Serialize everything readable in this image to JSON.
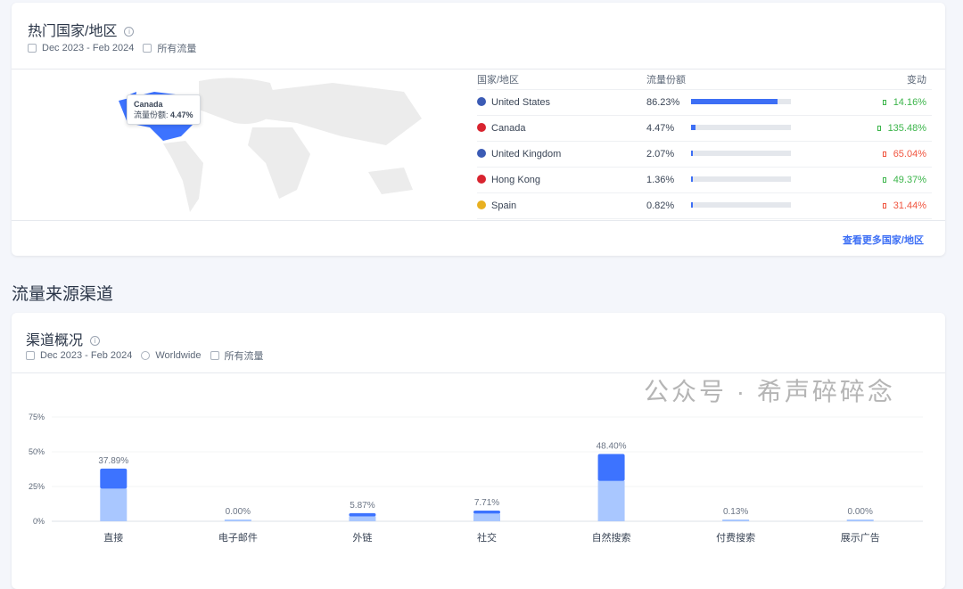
{
  "top_regions": {
    "title": "热门国家/地区",
    "date_range": "Dec 2023 - Feb 2024",
    "traffic_type": "所有流量",
    "columns": [
      "国家/地区",
      "流量份额",
      "变动"
    ],
    "rows": [
      {
        "country": "United States",
        "share": "86.23%",
        "share_value": 86.23,
        "change": "14.16%",
        "direction": "up",
        "flag_color": "#3b5bb5"
      },
      {
        "country": "Canada",
        "share": "4.47%",
        "share_value": 4.47,
        "change": "135.48%",
        "direction": "up",
        "flag_color": "#d8242f"
      },
      {
        "country": "United Kingdom",
        "share": "2.07%",
        "share_value": 2.07,
        "change": "65.04%",
        "direction": "down",
        "flag_color": "#3b5bb5"
      },
      {
        "country": "Hong Kong",
        "share": "1.36%",
        "share_value": 1.36,
        "change": "49.37%",
        "direction": "up",
        "flag_color": "#d8242f"
      },
      {
        "country": "Spain",
        "share": "0.82%",
        "share_value": 0.82,
        "change": "31.44%",
        "direction": "down",
        "flag_color": "#e8b020"
      }
    ],
    "tooltip": {
      "country": "Canada",
      "label": "流量份额:",
      "value": "4.47%"
    },
    "more_link": "查看更多国家/地区",
    "colors": {
      "accent": "#3d6ff5",
      "up": "#3bb54a",
      "down": "#f0553f"
    }
  },
  "section_title": "流量来源渠道",
  "channels": {
    "title": "渠道概况",
    "date_range": "Dec 2023 - Feb 2024",
    "region": "Worldwide",
    "traffic_type": "所有流量"
  },
  "chart_data": {
    "type": "bar",
    "stacked": true,
    "categories": [
      "直接",
      "电子邮件",
      "外链",
      "社交",
      "自然搜索",
      "付费搜索",
      "展示广告"
    ],
    "totals": [
      37.89,
      0.0,
      5.87,
      7.71,
      48.4,
      0.13,
      0.0
    ],
    "total_labels": [
      "37.89%",
      "0.00%",
      "5.87%",
      "7.71%",
      "48.40%",
      "0.13%",
      "0.00%"
    ],
    "series": [
      {
        "values": [
          23.5,
          0,
          3.5,
          5.5,
          29,
          0.13,
          0
        ],
        "color": "#a9c7ff"
      },
      {
        "values": [
          14.39,
          0,
          2.37,
          2.21,
          19.4,
          0,
          0
        ],
        "color": "#3d73ff"
      }
    ],
    "yticks": [
      "0%",
      "25%",
      "50%",
      "75%"
    ],
    "ylim": [
      0,
      75
    ],
    "grid": true
  },
  "watermark": "公众号 · 希声碎碎念"
}
